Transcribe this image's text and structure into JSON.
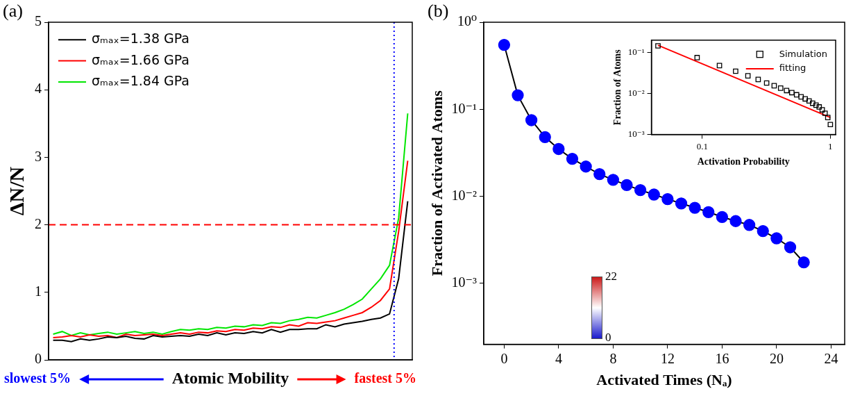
{
  "chart_data": [
    {
      "panel": "(a)",
      "type": "line",
      "y_label": "ΔN/N",
      "x_label": "Atomic Mobility",
      "x_end_labels": [
        {
          "text": "slowest 5%",
          "color": "#0000ff"
        },
        {
          "text": "fastest 5%",
          "color": "#ff0000"
        }
      ],
      "x": [
        1.25,
        3.75,
        6.25,
        8.75,
        11.25,
        13.75,
        16.25,
        18.75,
        21.25,
        23.75,
        26.25,
        28.75,
        31.25,
        33.75,
        36.25,
        38.75,
        41.25,
        43.75,
        46.25,
        48.75,
        51.25,
        53.75,
        56.25,
        58.75,
        61.25,
        63.75,
        66.25,
        68.75,
        71.25,
        73.75,
        76.25,
        78.75,
        81.25,
        83.75,
        86.25,
        88.75,
        91.25,
        93.75,
        96.25,
        98.75
      ],
      "xlim": [
        0,
        100
      ],
      "ylim": [
        0,
        5
      ],
      "yticks": [
        0,
        1,
        2,
        3,
        4,
        5
      ],
      "tick_labels": "y",
      "grid": false,
      "legend": "upper left",
      "hlines": [
        {
          "value": 2,
          "color": "#ff0000",
          "line_style": "dashed"
        }
      ],
      "vlines": [
        {
          "value": 95,
          "color": "#0000ff",
          "line_style": "dotted"
        }
      ],
      "series": [
        {
          "name": "σₘₐₓ=1.38 GPa",
          "color": "#000000",
          "marker": "none",
          "line_style": "solid",
          "values": [
            0.29,
            0.29,
            0.27,
            0.31,
            0.29,
            0.31,
            0.34,
            0.33,
            0.35,
            0.32,
            0.31,
            0.36,
            0.34,
            0.35,
            0.36,
            0.35,
            0.38,
            0.36,
            0.4,
            0.37,
            0.4,
            0.39,
            0.42,
            0.4,
            0.45,
            0.41,
            0.45,
            0.45,
            0.46,
            0.46,
            0.52,
            0.49,
            0.53,
            0.55,
            0.57,
            0.6,
            0.62,
            0.68,
            1.2,
            2.35
          ]
        },
        {
          "name": "σₘₐₓ=1.66 GPa",
          "color": "#ff0000",
          "marker": "none",
          "line_style": "solid",
          "values": [
            0.33,
            0.34,
            0.36,
            0.34,
            0.37,
            0.35,
            0.36,
            0.33,
            0.38,
            0.36,
            0.37,
            0.38,
            0.36,
            0.38,
            0.4,
            0.38,
            0.41,
            0.4,
            0.43,
            0.42,
            0.45,
            0.44,
            0.47,
            0.46,
            0.49,
            0.48,
            0.52,
            0.5,
            0.55,
            0.54,
            0.56,
            0.58,
            0.62,
            0.66,
            0.7,
            0.78,
            0.88,
            1.05,
            1.9,
            2.95
          ]
        },
        {
          "name": "σₘₐₓ=1.84 GPa",
          "color": "#00e600",
          "marker": "none",
          "line_style": "solid",
          "values": [
            0.38,
            0.42,
            0.36,
            0.4,
            0.37,
            0.39,
            0.41,
            0.38,
            0.4,
            0.42,
            0.39,
            0.41,
            0.38,
            0.42,
            0.45,
            0.44,
            0.46,
            0.45,
            0.48,
            0.47,
            0.5,
            0.49,
            0.52,
            0.51,
            0.55,
            0.54,
            0.58,
            0.6,
            0.63,
            0.62,
            0.66,
            0.7,
            0.75,
            0.82,
            0.9,
            1.05,
            1.2,
            1.4,
            2.1,
            3.65
          ]
        }
      ]
    },
    {
      "panel": "(b)",
      "type": "line",
      "y_label": "Fraction of Activated Atoms",
      "x_label": "Activated Times (Nₐ)",
      "log": "y",
      "grid": false,
      "x": [
        0,
        1,
        2,
        3,
        4,
        5,
        6,
        7,
        8,
        9,
        10,
        11,
        12,
        13,
        14,
        15,
        16,
        17,
        18,
        19,
        20,
        21,
        22
      ],
      "xlim": [
        -1.5,
        25
      ],
      "xticks": [
        0,
        4,
        8,
        12,
        16,
        20,
        24
      ],
      "ylim": [
        0.0002,
        1
      ],
      "yticks": [
        {
          "value": 0.001,
          "label": "10⁻³"
        },
        {
          "value": 0.01,
          "label": "10⁻²"
        },
        {
          "value": 0.1,
          "label": "10⁻¹"
        },
        {
          "value": 1,
          "label": "10⁰"
        }
      ],
      "series": [
        {
          "color": "#0000ff",
          "marker": "circle",
          "line_style": "solid",
          "values": [
            0.55,
            0.145,
            0.075,
            0.048,
            0.035,
            0.027,
            0.022,
            0.018,
            0.0155,
            0.0135,
            0.0118,
            0.0105,
            0.0093,
            0.0083,
            0.0074,
            0.0066,
            0.0058,
            0.0052,
            0.0047,
            0.004,
            0.0033,
            0.0026,
            0.00175
          ]
        }
      ],
      "colorbar": {
        "range": [
          0,
          22
        ],
        "ticks": [
          0,
          22
        ],
        "colors": [
          "#1a1acc",
          "#ffffff",
          "#cc1a1a"
        ]
      }
    },
    {
      "type": "line",
      "log": true,
      "grid": false,
      "legend": "upper right",
      "x_label": "Activation Probability",
      "y_label": "Fraction of Atoms",
      "xlim": [
        0.04,
        1.1
      ],
      "xticks": [
        0.1,
        1
      ],
      "ylim": [
        0.001,
        0.2
      ],
      "yticks": [
        {
          "value": 0.001,
          "label": "10⁻³"
        },
        {
          "value": 0.01,
          "label": "10⁻²"
        },
        {
          "value": 0.1,
          "label": "10⁻¹"
        }
      ],
      "series": [
        {
          "name": "Simulation",
          "color": "#000000",
          "marker": "square_open",
          "line_style": "none",
          "x": [
            0.045,
            0.091,
            0.136,
            0.182,
            0.227,
            0.273,
            0.318,
            0.364,
            0.409,
            0.455,
            0.5,
            0.545,
            0.591,
            0.636,
            0.682,
            0.727,
            0.773,
            0.818,
            0.864,
            0.909,
            0.955,
            1
          ],
          "values": [
            0.145,
            0.075,
            0.048,
            0.035,
            0.027,
            0.022,
            0.018,
            0.0155,
            0.0135,
            0.0118,
            0.0105,
            0.0093,
            0.0083,
            0.0074,
            0.0066,
            0.0058,
            0.0052,
            0.0047,
            0.004,
            0.0033,
            0.0026,
            0.00175
          ]
        },
        {
          "name": "fitting",
          "color": "#ff0000",
          "marker": "none",
          "line_style": "solid",
          "x": [
            0.045,
            1
          ],
          "values": [
            0.15,
            0.0026
          ]
        }
      ]
    }
  ]
}
